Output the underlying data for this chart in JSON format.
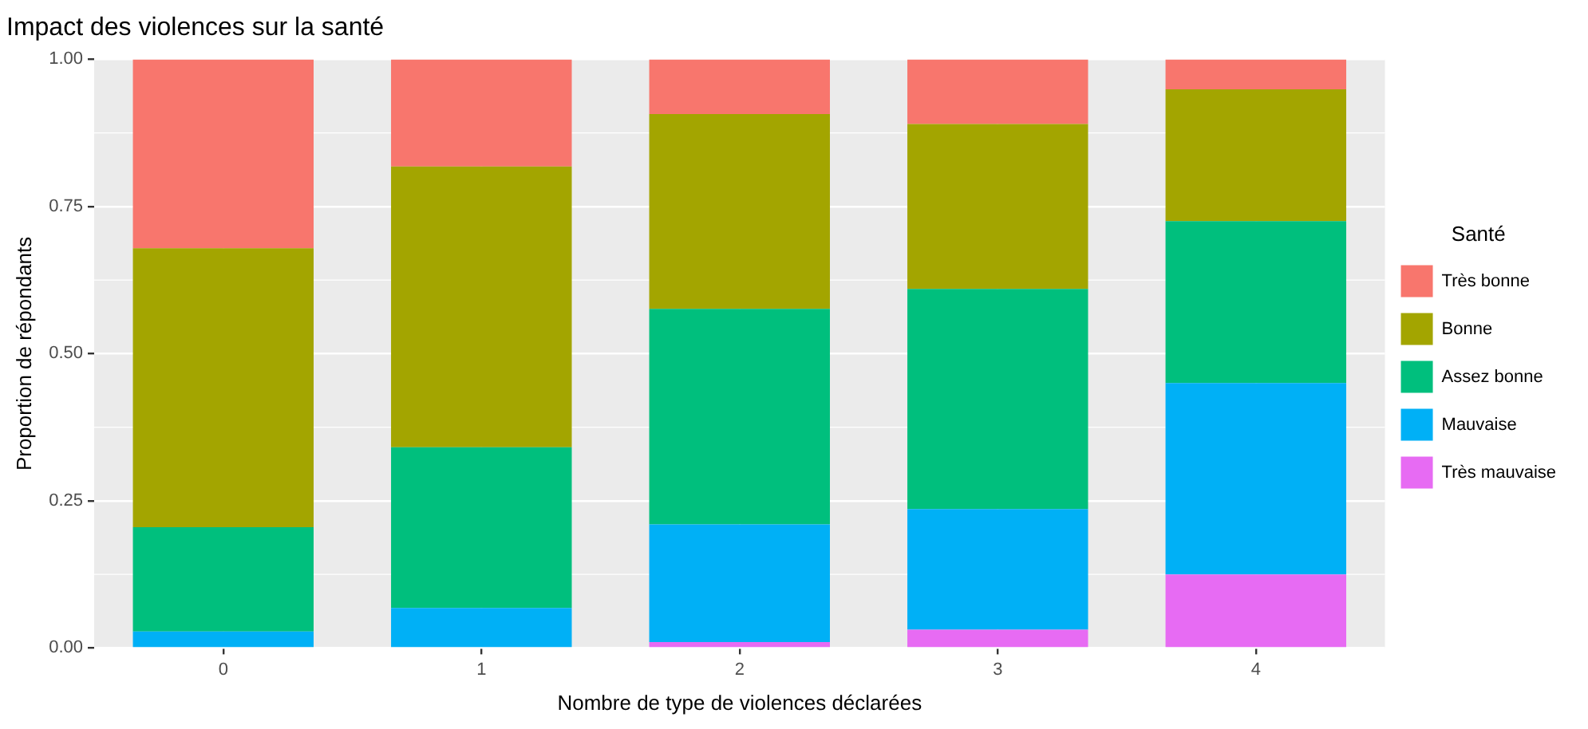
{
  "chart_data": {
    "type": "bar",
    "title": "Impact des violences sur la santé",
    "xlabel": "Nombre de type de violences déclarées",
    "ylabel": "Proportion de répondants",
    "legend_title": "Santé",
    "categories": [
      "0",
      "1",
      "2",
      "3",
      "4"
    ],
    "stacked": true,
    "ylim": [
      0,
      1
    ],
    "yticks": [
      {
        "value": 0,
        "label": "0.00"
      },
      {
        "value": 0.25,
        "label": "0.25"
      },
      {
        "value": 0.5,
        "label": "0.50"
      },
      {
        "value": 0.75,
        "label": "0.75"
      },
      {
        "value": 1,
        "label": "1.00"
      }
    ],
    "grid": true,
    "legend": "right",
    "series": [
      {
        "name": "Très mauvaise",
        "color": "#e76bf3",
        "values": [
          0,
          0,
          0.01,
          0.031,
          0.125
        ]
      },
      {
        "name": "Mauvaise",
        "color": "#00b0f6",
        "values": [
          0.028,
          0.068,
          0.2,
          0.205,
          0.325
        ]
      },
      {
        "name": "Assez bonne",
        "color": "#00bf7d",
        "values": [
          0.177,
          0.273,
          0.366,
          0.374,
          0.275
        ]
      },
      {
        "name": "Bonne",
        "color": "#a3a500",
        "values": [
          0.474,
          0.477,
          0.331,
          0.28,
          0.224
        ]
      },
      {
        "name": "Très bonne",
        "color": "#f8766d",
        "values": [
          0.321,
          0.182,
          0.093,
          0.11,
          0.051
        ]
      }
    ]
  }
}
